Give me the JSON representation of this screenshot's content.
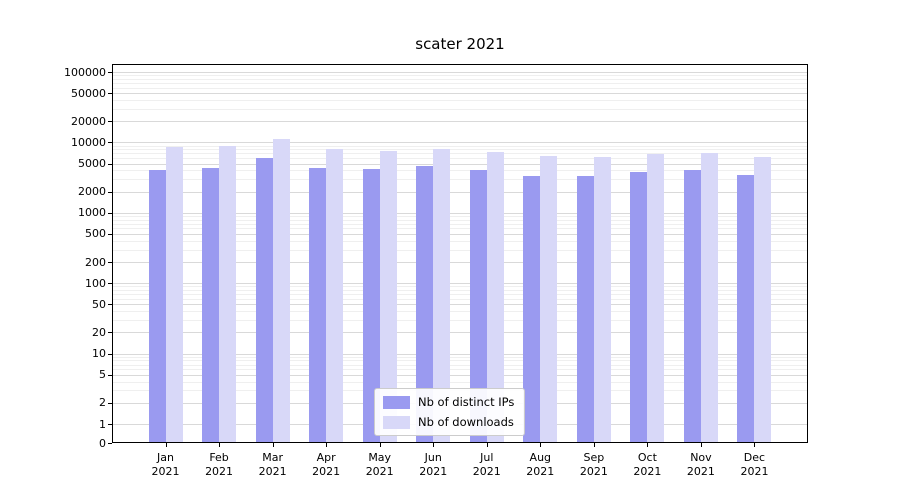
{
  "title": "scater 2021",
  "chart_data": {
    "type": "bar",
    "title": "scater 2021",
    "year": "2021",
    "categories": [
      "Jan",
      "Feb",
      "Mar",
      "Apr",
      "May",
      "Jun",
      "Jul",
      "Aug",
      "Sep",
      "Oct",
      "Nov",
      "Dec"
    ],
    "series": [
      {
        "name": "Nb of distinct IPs",
        "color": "#9a9af0",
        "values": [
          4000,
          4300,
          6000,
          4300,
          4200,
          4600,
          4000,
          3300,
          3300,
          3800,
          4000,
          3400
        ]
      },
      {
        "name": "Nb of downloads",
        "color": "#d8d8f8",
        "values": [
          8500,
          9000,
          11000,
          8000,
          7500,
          8000,
          7200,
          6500,
          6300,
          6800,
          7000,
          6300
        ]
      }
    ],
    "xlabel": "",
    "ylabel": "",
    "yscale": "symlog",
    "yticks": [
      0,
      1,
      2,
      5,
      10,
      20,
      50,
      100,
      200,
      500,
      1000,
      2000,
      5000,
      10000,
      20000,
      50000,
      100000
    ],
    "ylim": [
      0,
      100000
    ],
    "grid": true,
    "legend_position": "lower center"
  }
}
